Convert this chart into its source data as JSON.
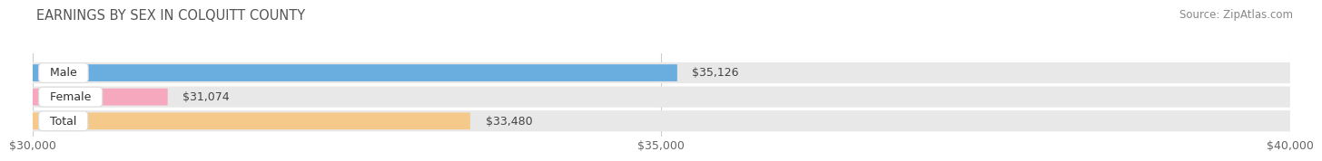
{
  "title": "EARNINGS BY SEX IN COLQUITT COUNTY",
  "source": "Source: ZipAtlas.com",
  "categories": [
    "Male",
    "Female",
    "Total"
  ],
  "values": [
    35126,
    31074,
    33480
  ],
  "bar_colors": [
    "#6aaee0",
    "#f5a8be",
    "#f5c98a"
  ],
  "bar_bg_color": "#e8e8e8",
  "value_labels": [
    "$35,126",
    "$31,074",
    "$33,480"
  ],
  "xlim": [
    30000,
    40000
  ],
  "xticks": [
    30000,
    35000,
    40000
  ],
  "xtick_labels": [
    "$30,000",
    "$35,000",
    "$40,000"
  ],
  "title_fontsize": 10.5,
  "source_fontsize": 8.5,
  "bar_label_fontsize": 9,
  "value_fontsize": 9,
  "tick_fontsize": 9,
  "bg_color": "#ffffff"
}
